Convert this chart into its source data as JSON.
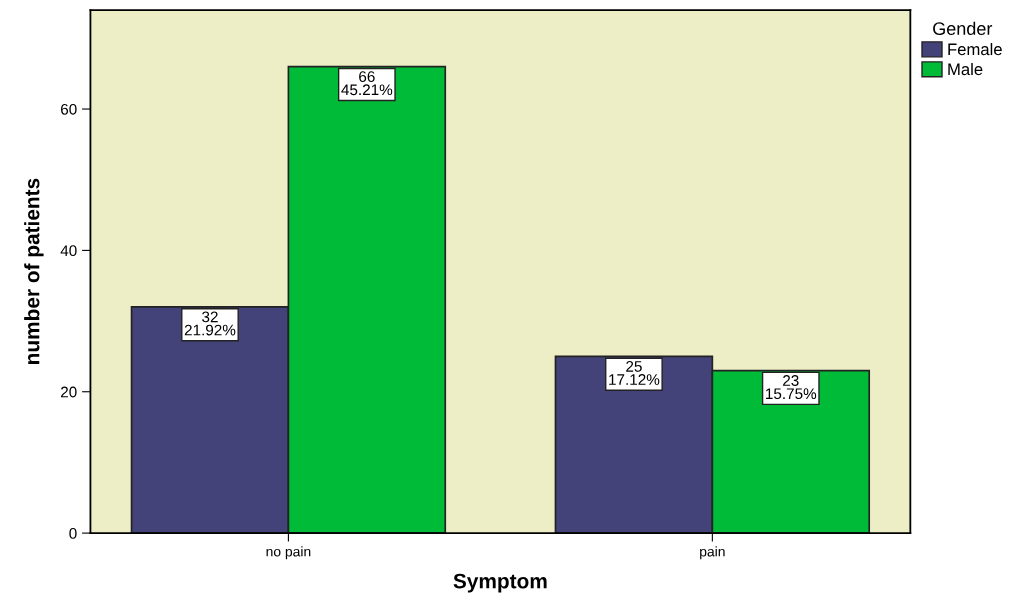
{
  "chart_data": {
    "type": "bar",
    "xlabel": "Symptom",
    "ylabel": "number of patients",
    "legend_title": "Gender",
    "categories": [
      "no pain",
      "pain"
    ],
    "series": [
      {
        "name": "Female",
        "color": "#434379",
        "values": [
          32,
          25
        ],
        "value_labels": [
          "32\n21.92%",
          "25\n17.12%"
        ]
      },
      {
        "name": "Male",
        "color": "#00bb38",
        "values": [
          66,
          23
        ],
        "value_labels": [
          "66\n45.21%",
          "23\n15.75%"
        ]
      }
    ],
    "ylim": [
      0,
      74
    ],
    "yticks": [
      0,
      20,
      40,
      60
    ],
    "grid": false,
    "legend": "top right"
  }
}
